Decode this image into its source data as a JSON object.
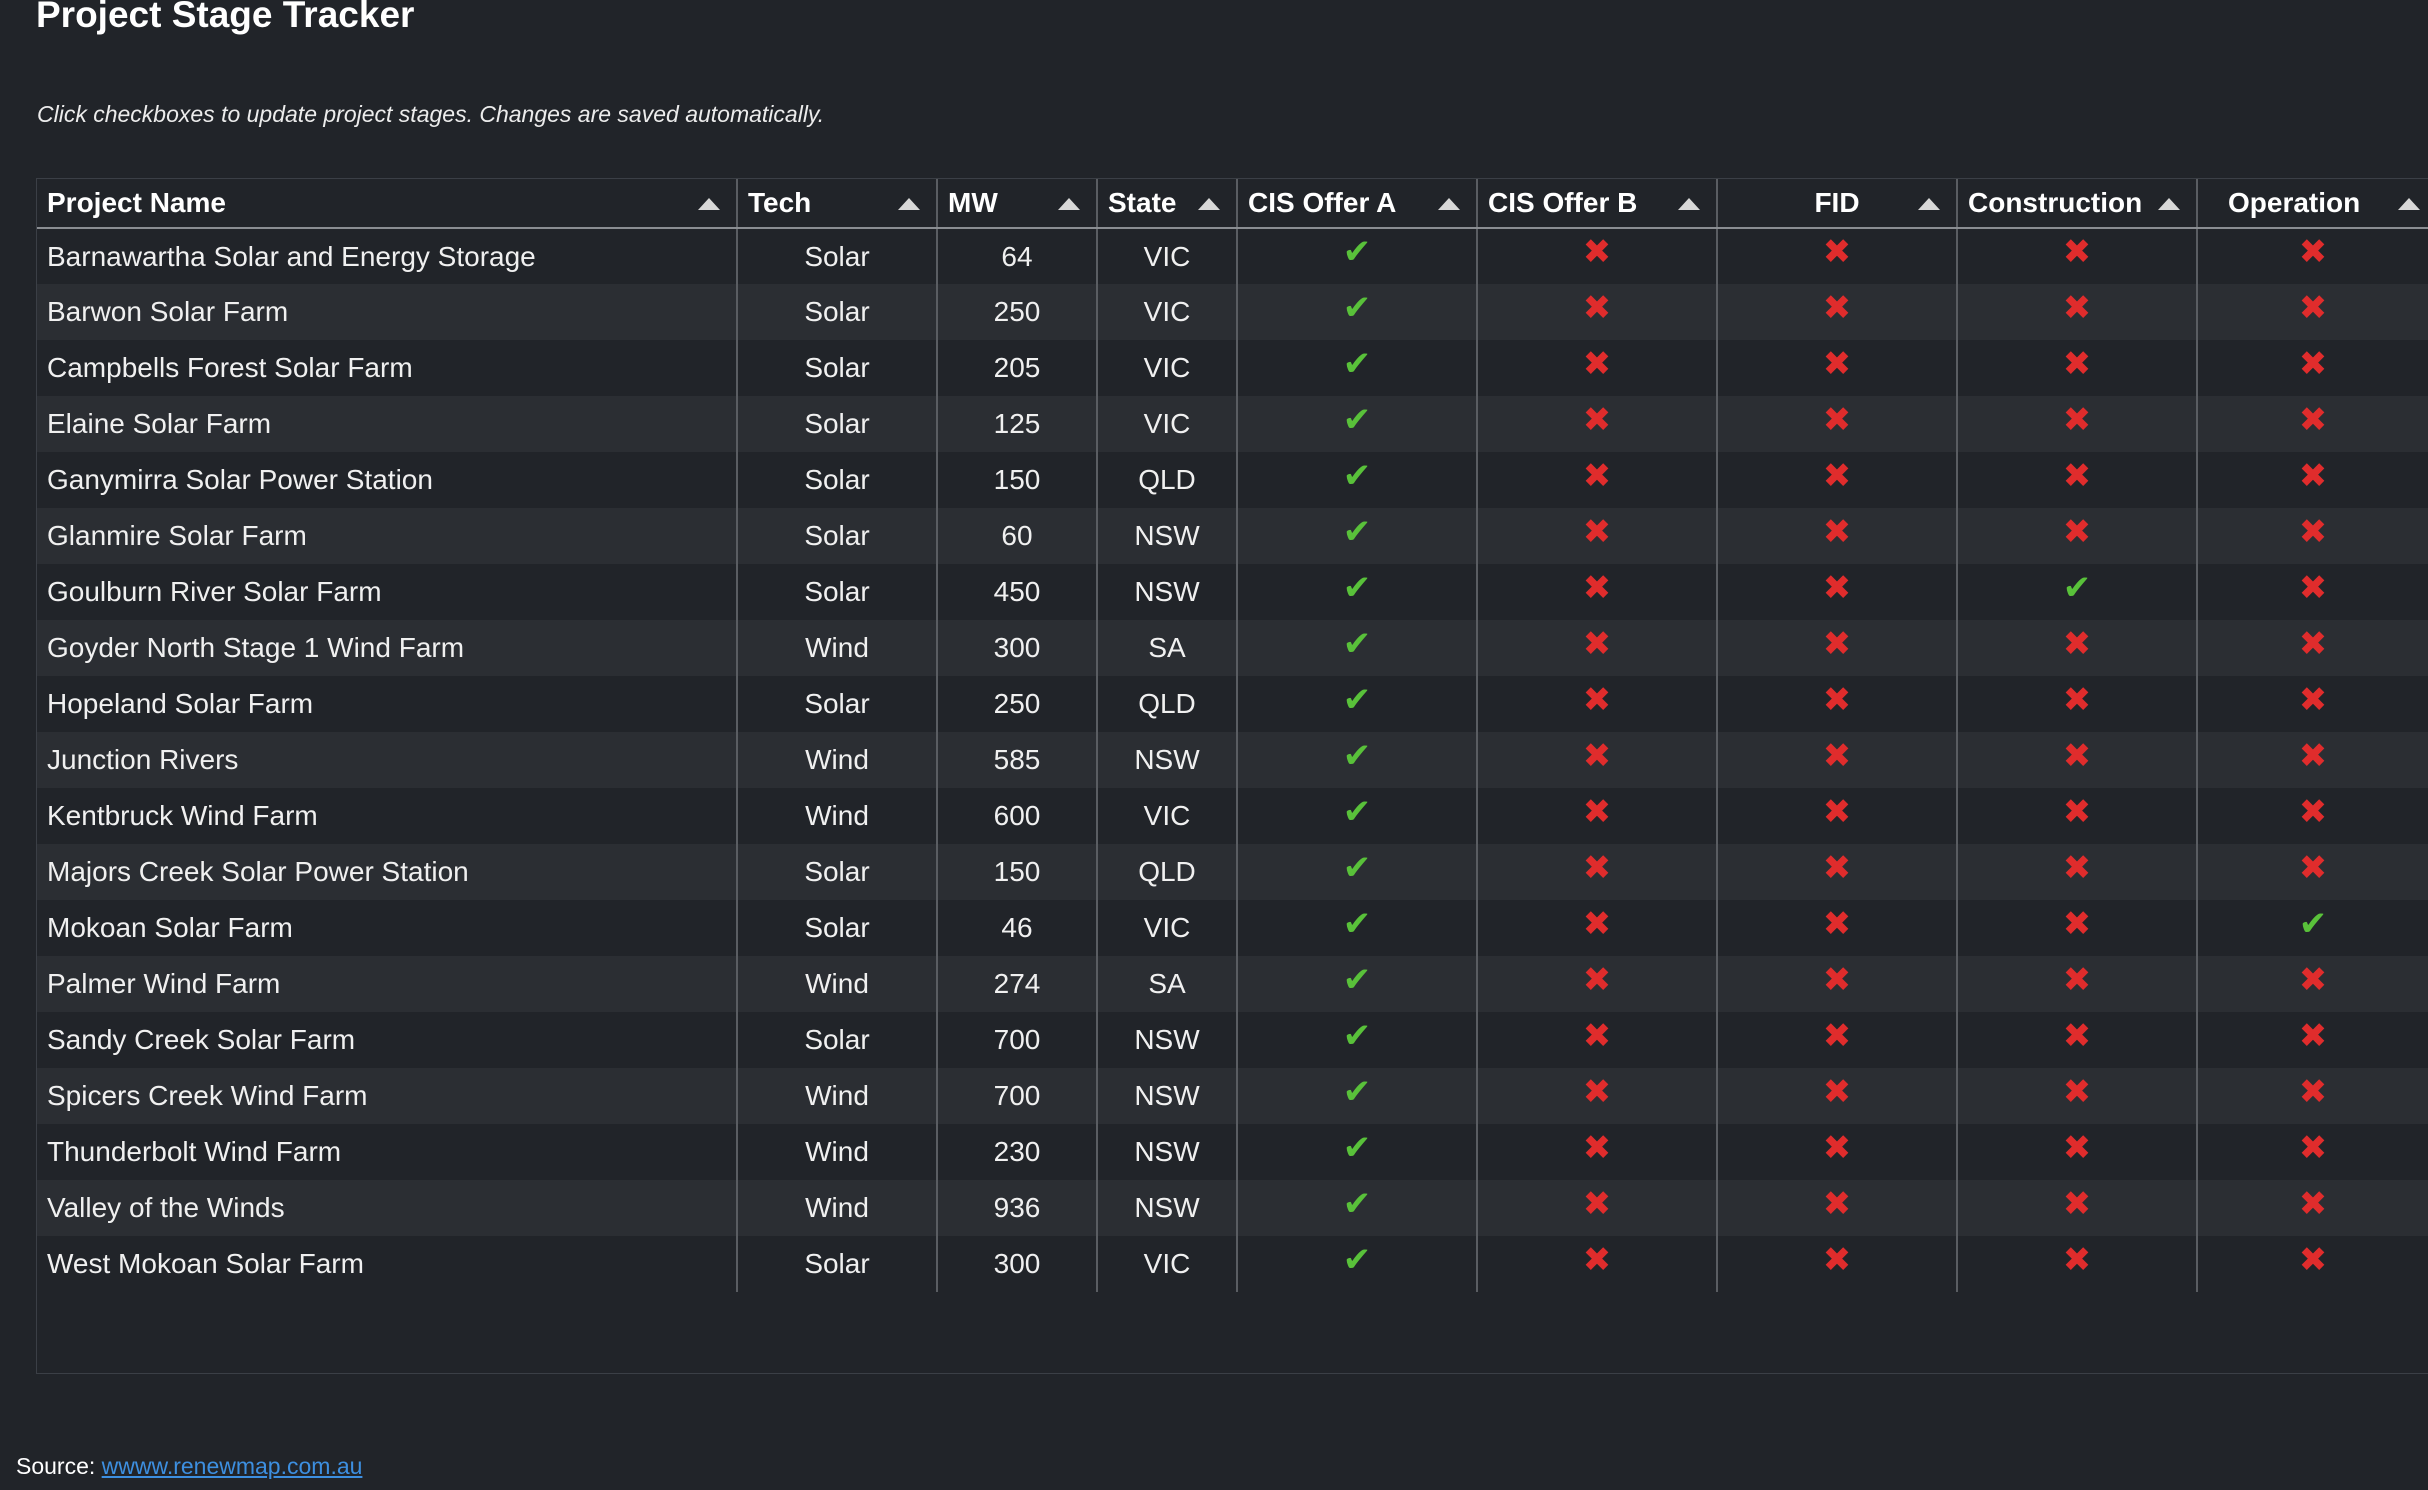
{
  "title": "Project Stage Tracker",
  "subtitle": "Click checkboxes to update project stages. Changes are saved automatically.",
  "columns": [
    "Project Name",
    "Tech",
    "MW",
    "State",
    "CIS Offer A",
    "CIS Offer B",
    "FID",
    "Construction",
    "Operation"
  ],
  "stage_symbols": {
    "yes": "✔",
    "no": "✖"
  },
  "colors": {
    "yes": "#59c13a",
    "no": "#e02c2c",
    "background": "#212429",
    "link": "#3d8fe0"
  },
  "rows": [
    {
      "name": "Barnawartha Solar and Energy Storage",
      "tech": "Solar",
      "mw": "64",
      "state": "VIC",
      "stages": [
        true,
        false,
        false,
        false,
        false
      ]
    },
    {
      "name": "Barwon Solar Farm",
      "tech": "Solar",
      "mw": "250",
      "state": "VIC",
      "stages": [
        true,
        false,
        false,
        false,
        false
      ]
    },
    {
      "name": "Campbells Forest Solar Farm",
      "tech": "Solar",
      "mw": "205",
      "state": "VIC",
      "stages": [
        true,
        false,
        false,
        false,
        false
      ]
    },
    {
      "name": "Elaine Solar Farm",
      "tech": "Solar",
      "mw": "125",
      "state": "VIC",
      "stages": [
        true,
        false,
        false,
        false,
        false
      ]
    },
    {
      "name": "Ganymirra Solar Power Station",
      "tech": "Solar",
      "mw": "150",
      "state": "QLD",
      "stages": [
        true,
        false,
        false,
        false,
        false
      ]
    },
    {
      "name": "Glanmire Solar Farm",
      "tech": "Solar",
      "mw": "60",
      "state": "NSW",
      "stages": [
        true,
        false,
        false,
        false,
        false
      ]
    },
    {
      "name": "Goulburn River Solar Farm",
      "tech": "Solar",
      "mw": "450",
      "state": "NSW",
      "stages": [
        true,
        false,
        false,
        true,
        false
      ]
    },
    {
      "name": "Goyder North Stage 1 Wind Farm",
      "tech": "Wind",
      "mw": "300",
      "state": "SA",
      "stages": [
        true,
        false,
        false,
        false,
        false
      ]
    },
    {
      "name": "Hopeland Solar Farm",
      "tech": "Solar",
      "mw": "250",
      "state": "QLD",
      "stages": [
        true,
        false,
        false,
        false,
        false
      ]
    },
    {
      "name": "Junction Rivers",
      "tech": "Wind",
      "mw": "585",
      "state": "NSW",
      "stages": [
        true,
        false,
        false,
        false,
        false
      ]
    },
    {
      "name": "Kentbruck Wind Farm",
      "tech": "Wind",
      "mw": "600",
      "state": "VIC",
      "stages": [
        true,
        false,
        false,
        false,
        false
      ]
    },
    {
      "name": "Majors Creek Solar Power Station",
      "tech": "Solar",
      "mw": "150",
      "state": "QLD",
      "stages": [
        true,
        false,
        false,
        false,
        false
      ]
    },
    {
      "name": "Mokoan Solar Farm",
      "tech": "Solar",
      "mw": "46",
      "state": "VIC",
      "stages": [
        true,
        false,
        false,
        false,
        true
      ]
    },
    {
      "name": "Palmer Wind Farm",
      "tech": "Wind",
      "mw": "274",
      "state": "SA",
      "stages": [
        true,
        false,
        false,
        false,
        false
      ]
    },
    {
      "name": "Sandy Creek Solar Farm",
      "tech": "Solar",
      "mw": "700",
      "state": "NSW",
      "stages": [
        true,
        false,
        false,
        false,
        false
      ]
    },
    {
      "name": "Spicers Creek Wind Farm",
      "tech": "Wind",
      "mw": "700",
      "state": "NSW",
      "stages": [
        true,
        false,
        false,
        false,
        false
      ]
    },
    {
      "name": "Thunderbolt Wind Farm",
      "tech": "Wind",
      "mw": "230",
      "state": "NSW",
      "stages": [
        true,
        false,
        false,
        false,
        false
      ]
    },
    {
      "name": "Valley of the Winds",
      "tech": "Wind",
      "mw": "936",
      "state": "NSW",
      "stages": [
        true,
        false,
        false,
        false,
        false
      ]
    },
    {
      "name": "West Mokoan Solar Farm",
      "tech": "Solar",
      "mw": "300",
      "state": "VIC",
      "stages": [
        true,
        false,
        false,
        false,
        false
      ]
    }
  ],
  "source": {
    "label": "Source: ",
    "link_text": "wwww.renewmap.com.au"
  }
}
